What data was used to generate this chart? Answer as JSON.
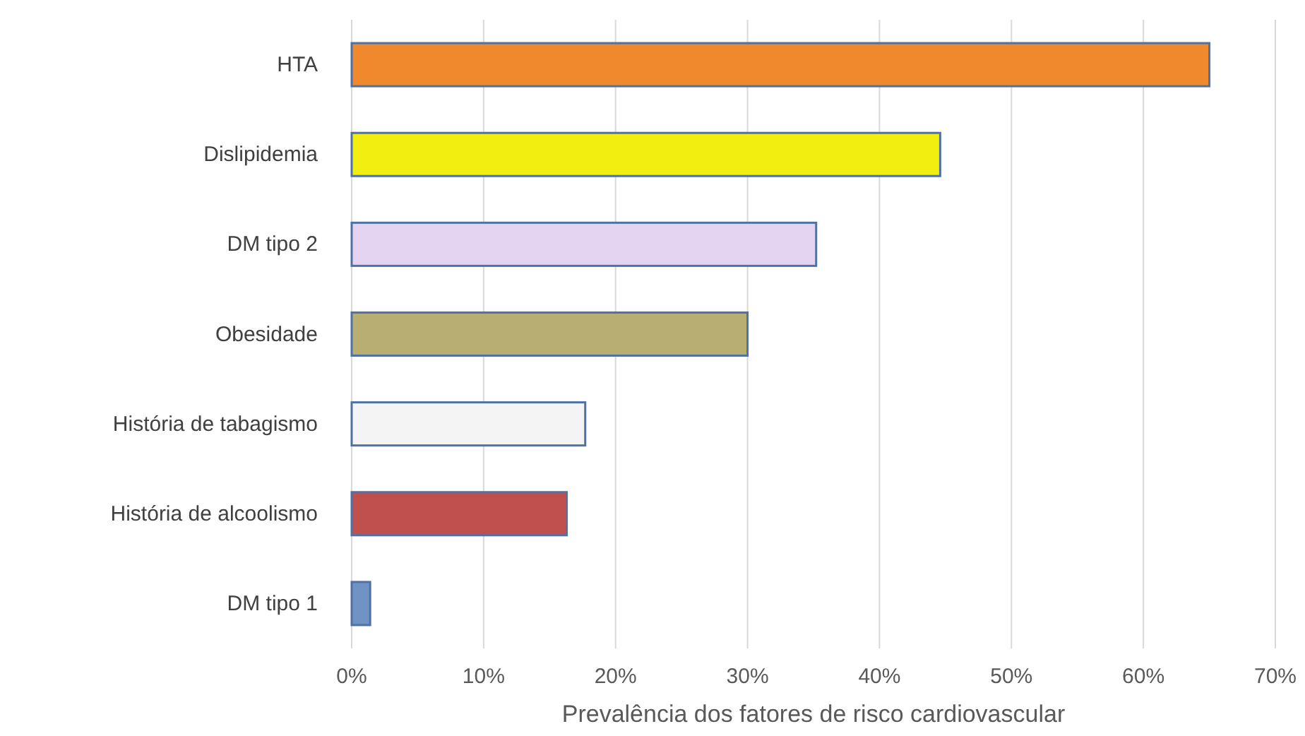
{
  "chart_data": {
    "type": "bar",
    "orientation": "horizontal",
    "xlabel": "Prevalência dos fatores de risco cardiovascular",
    "categories": [
      "HTA",
      "Dislipidemia",
      "DM tipo 2",
      "Obesidade",
      "História de tabagismo",
      "História de alcoolismo",
      "DM tipo 1"
    ],
    "values": [
      65,
      44.6,
      35.2,
      30,
      17.7,
      16.3,
      1.4
    ],
    "colors": [
      "#f0892e",
      "#f2ee10",
      "#e4d4f2",
      "#b9ae72",
      "#f4f4f4",
      "#c0504d",
      "#6f93c2"
    ],
    "xlim": [
      0,
      70
    ],
    "xticks": [
      {
        "value": 0,
        "label": "0%"
      },
      {
        "value": 10,
        "label": "10%"
      },
      {
        "value": 20,
        "label": "20%"
      },
      {
        "value": 30,
        "label": "30%"
      },
      {
        "value": 40,
        "label": "40%"
      },
      {
        "value": 50,
        "label": "50%"
      },
      {
        "value": 60,
        "label": "60%"
      },
      {
        "value": 70,
        "label": "70%"
      }
    ],
    "grid": "x"
  }
}
